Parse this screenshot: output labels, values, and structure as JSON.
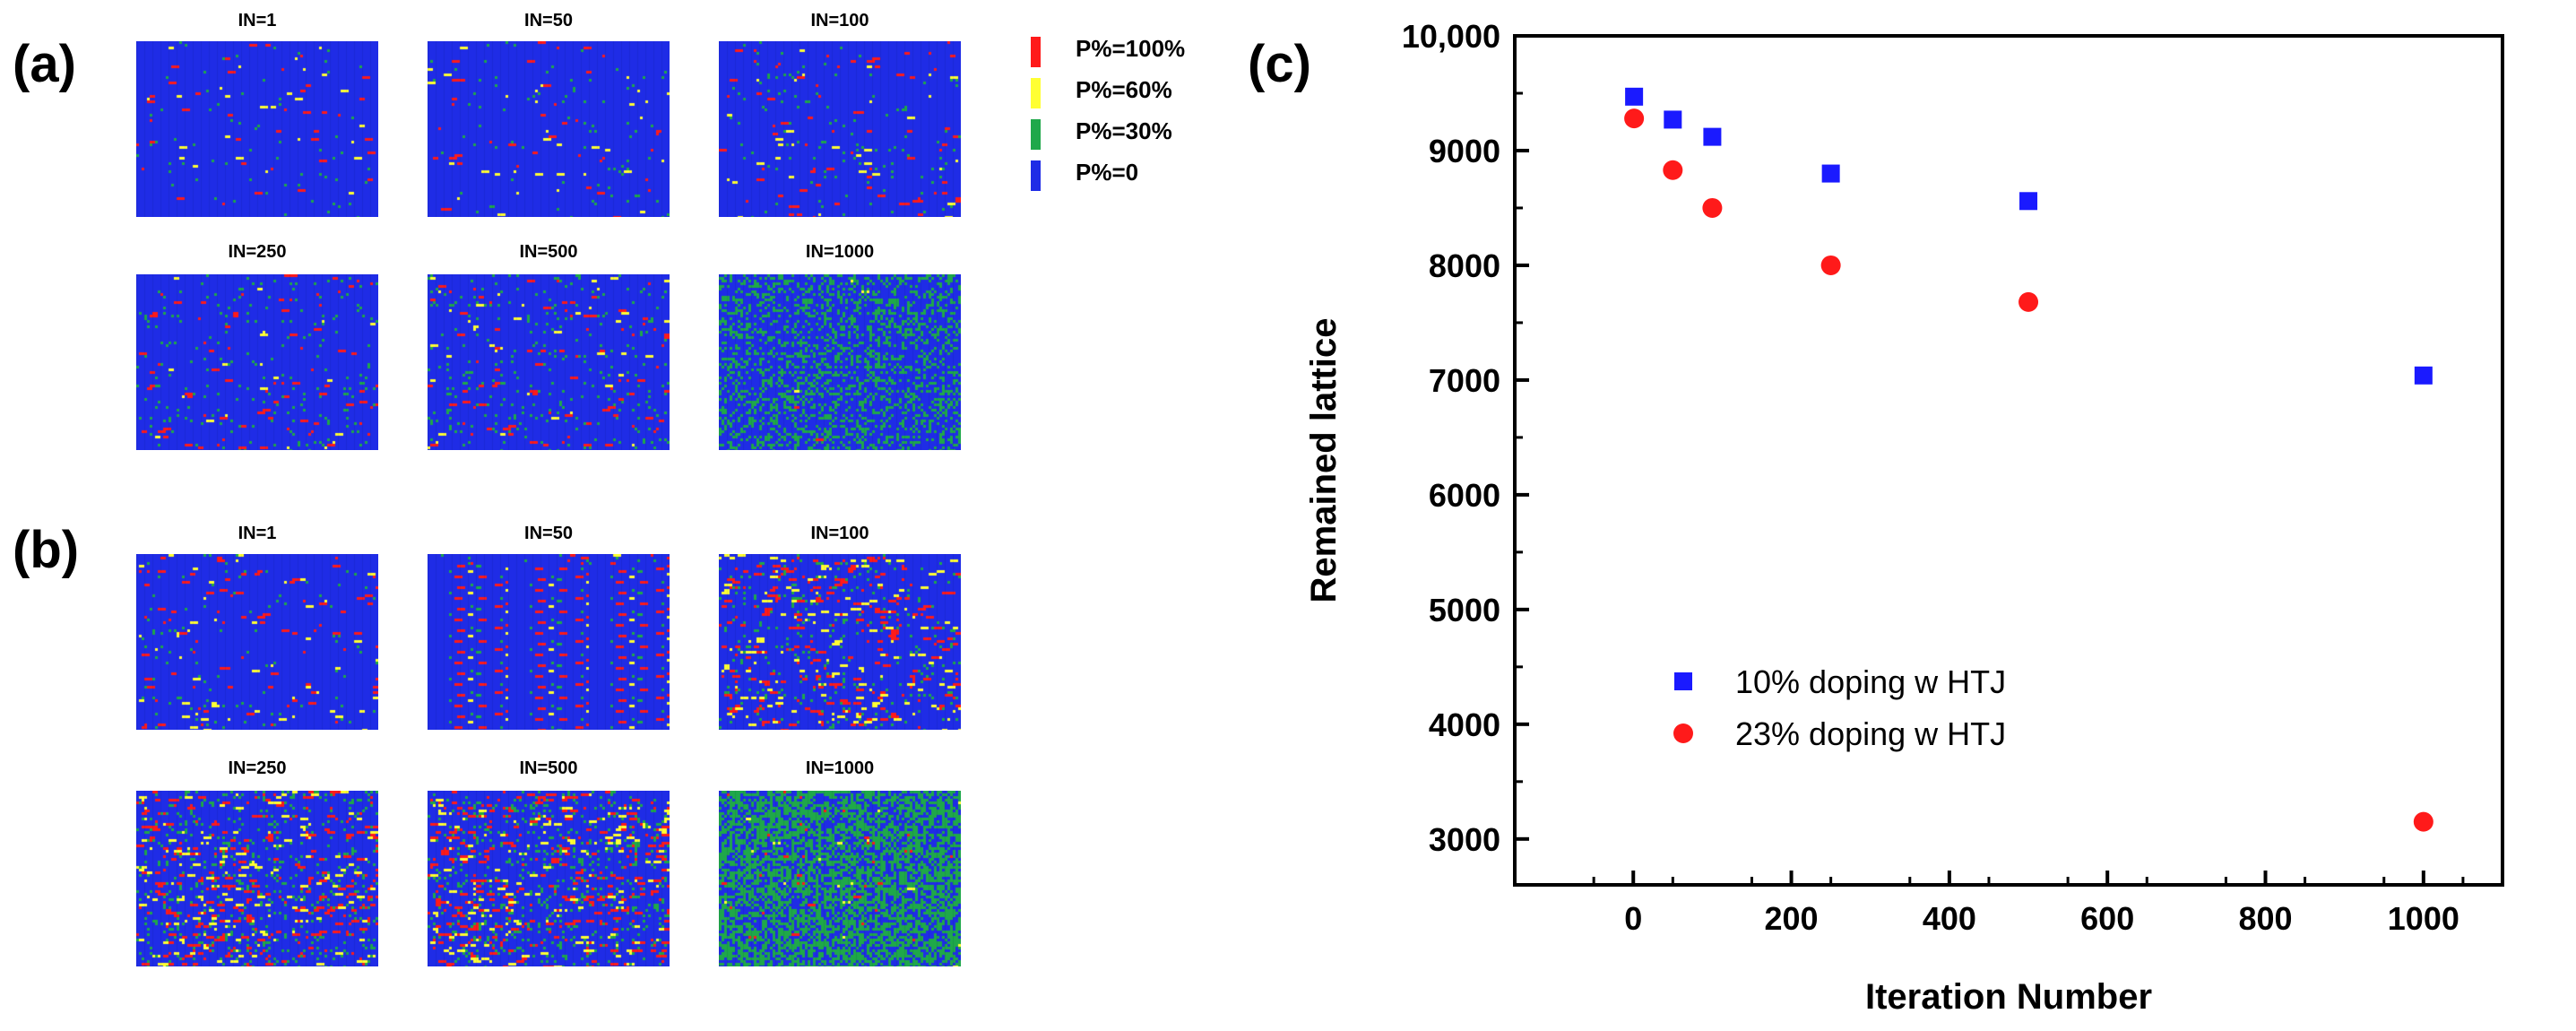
{
  "colors": {
    "p100": "#ff1a1a",
    "p60": "#ffff33",
    "p30": "#1fa84a",
    "p0": "#1f2ce6",
    "series1": "#1a1aff",
    "series2": "#ff1a1a"
  },
  "panel_a": {
    "label": "(a)",
    "tiles": [
      {
        "title": "IN=1",
        "mix": [
          0.006,
          0.004,
          0.01
        ]
      },
      {
        "title": "IN=50",
        "mix": [
          0.008,
          0.005,
          0.012
        ]
      },
      {
        "title": "IN=100",
        "mix": [
          0.01,
          0.006,
          0.015
        ]
      },
      {
        "title": "IN=250",
        "mix": [
          0.012,
          0.006,
          0.03
        ]
      },
      {
        "title": "IN=500",
        "mix": [
          0.012,
          0.006,
          0.04
        ]
      },
      {
        "title": "IN=1000",
        "mix": [
          0.001,
          0.001,
          0.3
        ]
      }
    ]
  },
  "panel_b": {
    "label": "(b)",
    "tiles": [
      {
        "title": "IN=1",
        "mix": [
          0.012,
          0.008,
          0.012
        ]
      },
      {
        "title": "IN=50",
        "mix": [
          0.025,
          0.015,
          0.03
        ]
      },
      {
        "title": "IN=100",
        "mix": [
          0.035,
          0.02,
          0.045
        ]
      },
      {
        "title": "IN=250",
        "mix": [
          0.045,
          0.025,
          0.08
        ]
      },
      {
        "title": "IN=500",
        "mix": [
          0.05,
          0.028,
          0.09
        ]
      },
      {
        "title": "IN=1000",
        "mix": [
          0.005,
          0.003,
          0.56
        ]
      }
    ]
  },
  "legend": {
    "items": [
      {
        "label": "P%=100%",
        "color": "#ff1a1a"
      },
      {
        "label": "P%=60%",
        "color": "#ffff33"
      },
      {
        "label": "P%=30%",
        "color": "#1fa84a"
      },
      {
        "label": "P%=0",
        "color": "#1f2ce6"
      }
    ]
  },
  "panel_c": {
    "label": "(c)"
  },
  "chart_data": {
    "type": "scatter",
    "xlabel": "Iteration Number",
    "ylabel": "Remained lattice",
    "xlim": [
      -150,
      1100
    ],
    "ylim": [
      2600,
      10000
    ],
    "xticks": [
      0,
      200,
      400,
      600,
      800,
      1000
    ],
    "yticks": [
      3000,
      4000,
      5000,
      6000,
      7000,
      8000,
      9000,
      10000
    ],
    "ytick_labels": [
      "3000",
      "4000",
      "5000",
      "6000",
      "7000",
      "8000",
      "9000",
      "10,000"
    ],
    "grid": false,
    "legend_position": "lower-left",
    "series": [
      {
        "name": "10% doping w HTJ",
        "marker": "square",
        "color": "#1a1aff",
        "points": [
          [
            1,
            9470
          ],
          [
            50,
            9270
          ],
          [
            100,
            9120
          ],
          [
            250,
            8800
          ],
          [
            500,
            8560
          ],
          [
            1000,
            7040
          ]
        ]
      },
      {
        "name": "23% doping w HTJ",
        "marker": "circle",
        "color": "#ff1a1a",
        "points": [
          [
            1,
            9280
          ],
          [
            50,
            8830
          ],
          [
            100,
            8500
          ],
          [
            250,
            8000
          ],
          [
            500,
            7680
          ],
          [
            1000,
            3150
          ]
        ]
      }
    ]
  }
}
